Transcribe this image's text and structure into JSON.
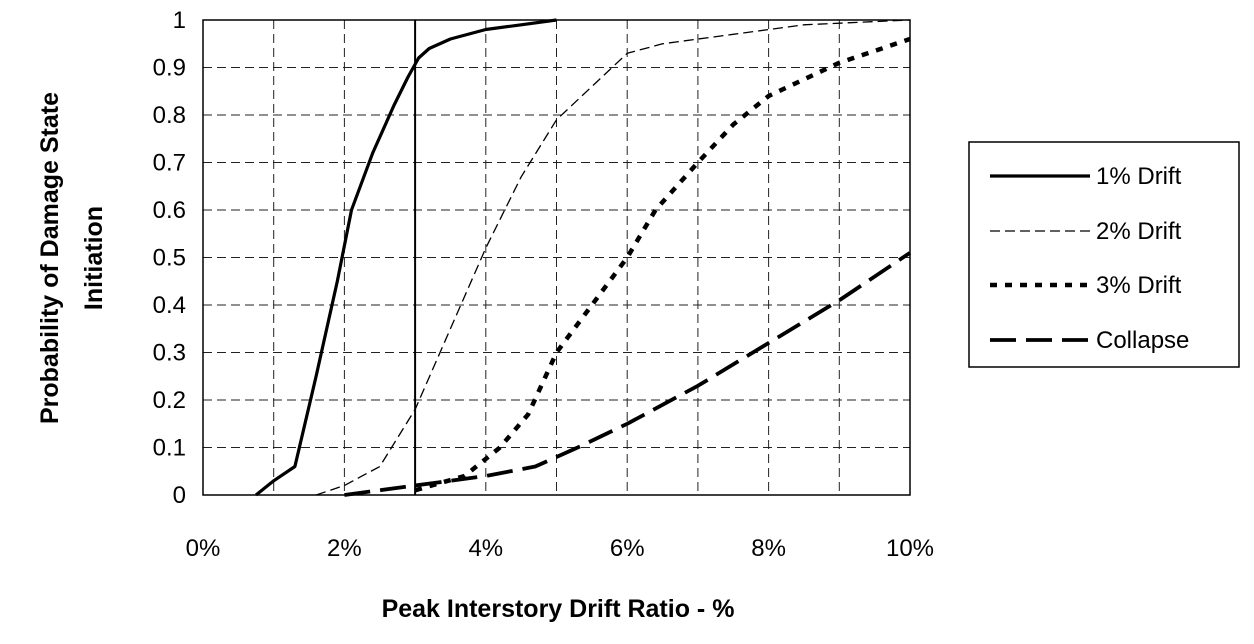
{
  "chart_data": {
    "type": "line",
    "title": "",
    "xlabel": "Peak Interstory Drift Ratio - %",
    "ylabel_lines": [
      "Probability of Damage State",
      "Initiation"
    ],
    "xlim": [
      0,
      10
    ],
    "ylim": [
      0,
      1
    ],
    "x_ticks": [
      {
        "value": 0,
        "label": "0%"
      },
      {
        "value": 2,
        "label": "2%"
      },
      {
        "value": 4,
        "label": "4%"
      },
      {
        "value": 6,
        "label": "6%"
      },
      {
        "value": 8,
        "label": "8%"
      },
      {
        "value": 10,
        "label": "10%"
      }
    ],
    "y_ticks": [
      {
        "value": 0,
        "label": "0"
      },
      {
        "value": 0.1,
        "label": "0.1"
      },
      {
        "value": 0.2,
        "label": "0.2"
      },
      {
        "value": 0.3,
        "label": "0.3"
      },
      {
        "value": 0.4,
        "label": "0.4"
      },
      {
        "value": 0.5,
        "label": "0.5"
      },
      {
        "value": 0.6,
        "label": "0.6"
      },
      {
        "value": 0.7,
        "label": "0.7"
      },
      {
        "value": 0.8,
        "label": "0.8"
      },
      {
        "value": 0.9,
        "label": "0.9"
      },
      {
        "value": 1,
        "label": "1"
      }
    ],
    "grid": true,
    "reference_line_x": 3,
    "legend_position": "right",
    "series": [
      {
        "name": "1% Drift",
        "style": "solid",
        "points": [
          [
            0.75,
            0
          ],
          [
            1.0,
            0.03
          ],
          [
            1.3,
            0.06
          ],
          [
            1.6,
            0.25
          ],
          [
            1.9,
            0.45
          ],
          [
            2.1,
            0.6
          ],
          [
            2.4,
            0.72
          ],
          [
            2.7,
            0.82
          ],
          [
            2.9,
            0.88
          ],
          [
            3.05,
            0.92
          ],
          [
            3.2,
            0.94
          ],
          [
            3.5,
            0.96
          ],
          [
            4.0,
            0.98
          ],
          [
            4.5,
            0.99
          ],
          [
            5.0,
            1.0
          ]
        ]
      },
      {
        "name": "2% Drift",
        "style": "thin-dash",
        "points": [
          [
            1.6,
            0
          ],
          [
            2.0,
            0.02
          ],
          [
            2.5,
            0.06
          ],
          [
            3.0,
            0.18
          ],
          [
            3.5,
            0.35
          ],
          [
            4.0,
            0.52
          ],
          [
            4.5,
            0.67
          ],
          [
            5.0,
            0.79
          ],
          [
            5.5,
            0.86
          ],
          [
            6.0,
            0.93
          ],
          [
            6.5,
            0.95
          ],
          [
            7.5,
            0.97
          ],
          [
            8.5,
            0.99
          ],
          [
            10.0,
            1.0
          ]
        ]
      },
      {
        "name": "3% Drift",
        "style": "dotted",
        "points": [
          [
            3.0,
            0.01
          ],
          [
            3.7,
            0.04
          ],
          [
            4.2,
            0.1
          ],
          [
            4.6,
            0.17
          ],
          [
            5.0,
            0.3
          ],
          [
            5.5,
            0.4
          ],
          [
            6.0,
            0.5
          ],
          [
            6.4,
            0.6
          ],
          [
            7.0,
            0.7
          ],
          [
            7.5,
            0.78
          ],
          [
            8.0,
            0.84
          ],
          [
            9.0,
            0.91
          ],
          [
            10.0,
            0.96
          ]
        ]
      },
      {
        "name": "Collapse",
        "style": "long-dash",
        "points": [
          [
            2.0,
            0
          ],
          [
            3.0,
            0.02
          ],
          [
            4.0,
            0.04
          ],
          [
            4.7,
            0.06
          ],
          [
            5.3,
            0.1
          ],
          [
            6.0,
            0.15
          ],
          [
            7.0,
            0.23
          ],
          [
            8.0,
            0.32
          ],
          [
            9.0,
            0.41
          ],
          [
            10.0,
            0.51
          ]
        ]
      }
    ]
  }
}
